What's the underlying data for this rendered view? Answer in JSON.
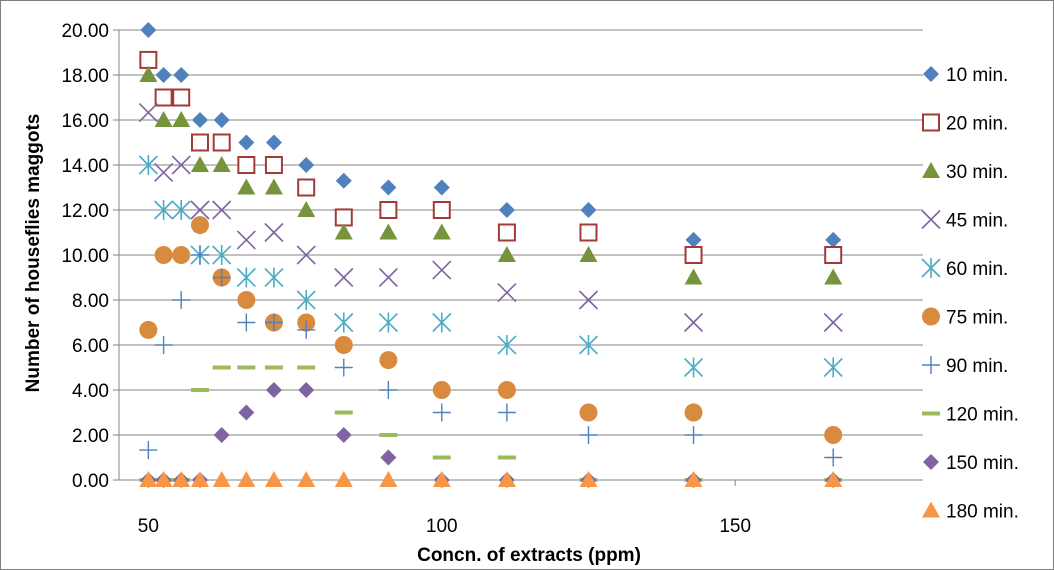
{
  "chart_data": {
    "type": "scatter",
    "title": "",
    "xlabel": "Concn. of extracts (ppm)",
    "ylabel": "Number of houseflies maggots",
    "xlim": [
      45,
      182
    ],
    "ylim": [
      0,
      20
    ],
    "x_ticks": [
      50,
      100,
      150
    ],
    "x_tick_labels": [
      "50",
      "100",
      "150"
    ],
    "y_ticks": [
      0,
      2,
      4,
      6,
      8,
      10,
      12,
      14,
      16,
      18,
      20
    ],
    "y_tick_labels": [
      "0.00",
      "2.00",
      "4.00",
      "6.00",
      "8.00",
      "10.00",
      "12.00",
      "14.00",
      "16.00",
      "18.00",
      "20.00"
    ],
    "grid": "horizontal",
    "legend_position": "right",
    "series": [
      {
        "name": "10 min.",
        "marker": "diamond",
        "color": "#4f81bd",
        "x": [
          50,
          52.6,
          55.6,
          58.8,
          62.5,
          66.7,
          71.4,
          76.9,
          83.3,
          90.9,
          100,
          111.1,
          125,
          142.9,
          166.7
        ],
        "y": [
          20,
          18,
          18,
          16,
          16,
          15,
          15,
          14,
          13.3,
          13,
          13,
          12,
          12,
          10.67,
          10.67
        ]
      },
      {
        "name": "20 min.",
        "marker": "square-open",
        "color": "#a33a3a",
        "x": [
          50,
          52.6,
          55.6,
          58.8,
          62.5,
          66.7,
          71.4,
          76.9,
          83.3,
          90.9,
          100,
          111.1,
          125,
          142.9,
          166.7
        ],
        "y": [
          18.67,
          17,
          17,
          15,
          15,
          14,
          14,
          13,
          11.67,
          12,
          12,
          11,
          11,
          10,
          10
        ]
      },
      {
        "name": "30 min.",
        "marker": "triangle",
        "color": "#77933c",
        "x": [
          50,
          52.6,
          55.6,
          58.8,
          62.5,
          66.7,
          71.4,
          76.9,
          83.3,
          90.9,
          100,
          111.1,
          125,
          142.9,
          166.7
        ],
        "y": [
          18,
          16,
          16,
          14,
          14,
          13,
          13,
          12,
          11,
          11,
          11,
          10,
          10,
          9,
          9
        ]
      },
      {
        "name": "45 min.",
        "marker": "x",
        "color": "#8064a2",
        "x": [
          50,
          52.6,
          55.6,
          58.8,
          62.5,
          66.7,
          71.4,
          76.9,
          83.3,
          90.9,
          100,
          111.1,
          125,
          142.9,
          166.7
        ],
        "y": [
          16.33,
          13.67,
          14,
          12,
          12,
          10.67,
          11,
          10,
          9,
          9,
          9.33,
          8.33,
          8,
          7,
          7
        ]
      },
      {
        "name": "60 min.",
        "marker": "star",
        "color": "#4bacc6",
        "x": [
          50,
          52.6,
          55.6,
          58.8,
          62.5,
          66.7,
          71.4,
          76.9,
          83.3,
          90.9,
          100,
          111.1,
          125,
          142.9,
          166.7
        ],
        "y": [
          14,
          12,
          12,
          10,
          10,
          9,
          9,
          8,
          7,
          7,
          7,
          6,
          6,
          5,
          5
        ]
      },
      {
        "name": "75 min.",
        "marker": "circle",
        "color": "#d88a3f",
        "x": [
          50,
          52.6,
          55.6,
          58.8,
          62.5,
          66.7,
          71.4,
          76.9,
          83.3,
          90.9,
          100,
          111.1,
          125,
          142.9,
          166.7
        ],
        "y": [
          6.67,
          10,
          10,
          11.33,
          9,
          8,
          7,
          7,
          6,
          5.33,
          4,
          4,
          3,
          3,
          2
        ]
      },
      {
        "name": "90 min.",
        "marker": "plus",
        "color": "#4f81bd",
        "x": [
          50,
          52.6,
          55.6,
          58.8,
          62.5,
          66.7,
          71.4,
          76.9,
          83.3,
          90.9,
          100,
          111.1,
          125,
          142.9,
          166.7
        ],
        "y": [
          1.33,
          6,
          8,
          10,
          9,
          7,
          7,
          6.67,
          5,
          4,
          3,
          3,
          2,
          2,
          1
        ]
      },
      {
        "name": "120 min.",
        "marker": "dash",
        "color": "#9bbb59",
        "x": [
          50,
          52.6,
          55.6,
          58.8,
          62.5,
          66.7,
          71.4,
          76.9,
          83.3,
          90.9,
          100,
          111.1,
          125,
          142.9,
          166.7
        ],
        "y": [
          0,
          0,
          0,
          4,
          5,
          5,
          5,
          5,
          3,
          2,
          1,
          1,
          0,
          0,
          0
        ]
      },
      {
        "name": "150 min.",
        "marker": "diamond",
        "color": "#8064a2",
        "x": [
          50,
          52.6,
          55.6,
          58.8,
          62.5,
          66.7,
          71.4,
          76.9,
          83.3,
          90.9,
          100,
          111.1,
          125,
          142.9,
          166.7
        ],
        "y": [
          0,
          0,
          0,
          0,
          2,
          3,
          4,
          4,
          2,
          1,
          0,
          0,
          0,
          0,
          0
        ]
      },
      {
        "name": "180 min.",
        "marker": "triangle",
        "color": "#f79646",
        "x": [
          50,
          52.6,
          55.6,
          58.8,
          62.5,
          66.7,
          71.4,
          76.9,
          83.3,
          90.9,
          100,
          111.1,
          125,
          142.9,
          166.7
        ],
        "y": [
          0,
          0,
          0,
          0,
          0,
          0,
          0,
          0,
          0,
          0,
          0,
          0,
          0,
          0,
          0
        ]
      }
    ]
  }
}
